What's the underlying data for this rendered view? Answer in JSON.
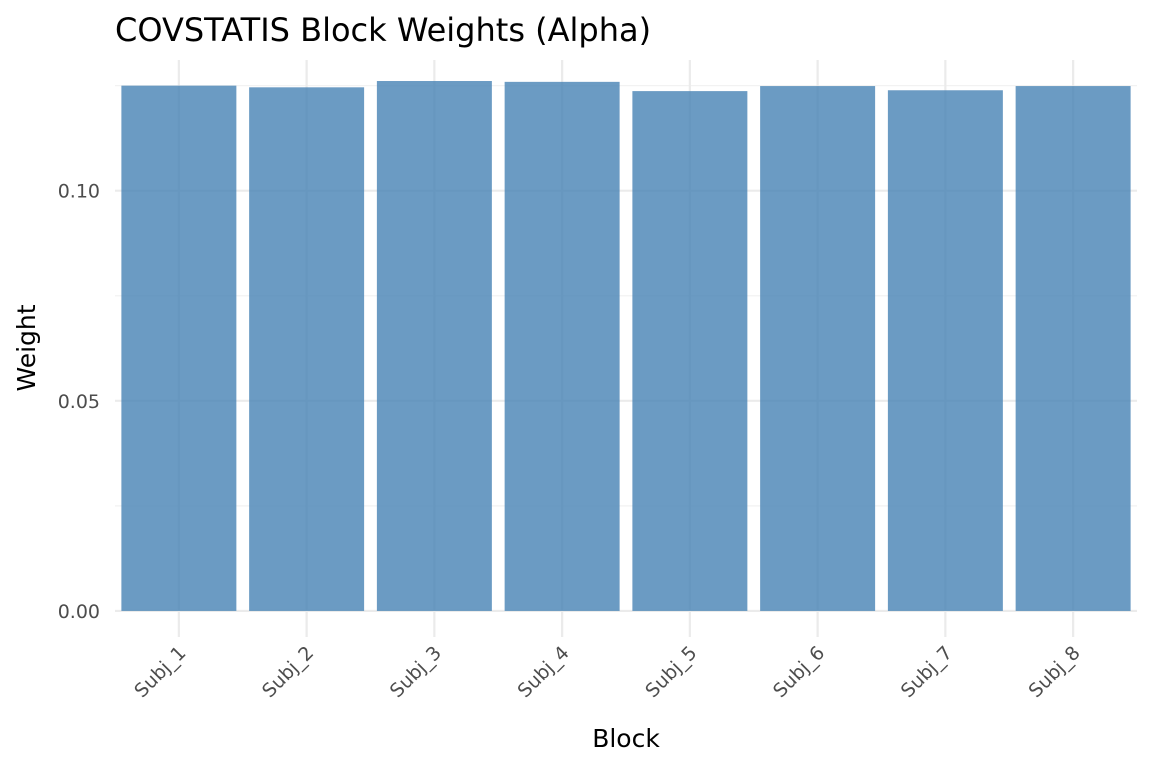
{
  "chart_data": {
    "type": "bar",
    "title": "COVSTATIS Block Weights (Alpha)",
    "xlabel": "Block",
    "ylabel": "Weight",
    "categories": [
      "Subj_1",
      "Subj_2",
      "Subj_3",
      "Subj_4",
      "Subj_5",
      "Subj_6",
      "Subj_7",
      "Subj_8"
    ],
    "values": [
      0.125,
      0.1246,
      0.1261,
      0.1259,
      0.1237,
      0.1249,
      0.1239,
      0.1249
    ],
    "yticks": [
      0.0,
      0.05,
      0.1
    ],
    "ytick_labels": [
      "0.00",
      "0.05",
      "0.10"
    ],
    "ylim": [
      -0.0062,
      0.1311
    ],
    "grid": true,
    "legend": "none",
    "bar_color": "#4682b4",
    "bar_opacity": 0.8
  }
}
